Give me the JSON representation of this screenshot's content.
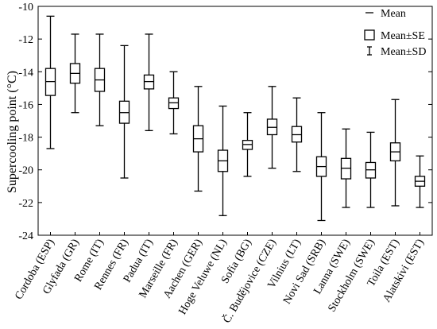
{
  "chart_data": {
    "type": "box",
    "title": "",
    "xlabel": "",
    "ylabel": "Supercooling point (°C)",
    "ylim": [
      -24,
      -10
    ],
    "yticks": [
      -24,
      -22,
      -20,
      -18,
      -16,
      -14,
      -12,
      -10
    ],
    "grid": false,
    "legend": {
      "placement": "top-right",
      "entries": [
        {
          "symbol": "line",
          "label": "Mean"
        },
        {
          "symbol": "box",
          "label": "Mean±SE"
        },
        {
          "symbol": "whisker",
          "label": "Mean±SD"
        }
      ]
    },
    "categories": [
      "Cordoba (ESP)",
      "Glyfada (GR)",
      "Rome (IT)",
      "Rennes (FR)",
      "Padua (IT)",
      "Marseille (FR)",
      "Aachen (GER)",
      "Hoge Veluwe (NL)",
      "Sofia (BG)",
      "Č. Budějovice (CZE)",
      "Vilnius (LT)",
      "Novi Sad (SRB)",
      "Lanna (SWE)",
      "Stockholm (SWE)",
      "Toila (EST)",
      "Alatskivi (EST)"
    ],
    "mean": [
      -14.6,
      -14.1,
      -14.5,
      -16.5,
      -14.6,
      -15.9,
      -18.1,
      -19.45,
      -18.45,
      -17.4,
      -17.85,
      -19.8,
      -19.9,
      -20.0,
      -18.9,
      -20.7
    ],
    "se_high": [
      -13.8,
      -13.5,
      -13.8,
      -15.8,
      -14.2,
      -15.6,
      -17.3,
      -18.8,
      -18.2,
      -16.9,
      -17.35,
      -19.2,
      -19.3,
      -19.55,
      -18.35,
      -20.4
    ],
    "se_low": [
      -15.45,
      -14.7,
      -15.2,
      -17.15,
      -15.05,
      -16.25,
      -18.9,
      -20.1,
      -18.75,
      -17.85,
      -18.3,
      -20.4,
      -20.55,
      -20.5,
      -19.45,
      -21.0
    ],
    "sd_high": [
      -10.6,
      -11.7,
      -11.7,
      -12.4,
      -11.7,
      -14.0,
      -14.9,
      -16.1,
      -16.5,
      -14.9,
      -15.6,
      -16.5,
      -17.5,
      -17.7,
      -15.7,
      -19.15
    ],
    "sd_low": [
      -18.7,
      -16.5,
      -17.3,
      -20.5,
      -17.6,
      -17.8,
      -21.3,
      -22.8,
      -20.4,
      -19.9,
      -20.1,
      -23.1,
      -22.3,
      -22.3,
      -22.2,
      -22.3
    ]
  }
}
